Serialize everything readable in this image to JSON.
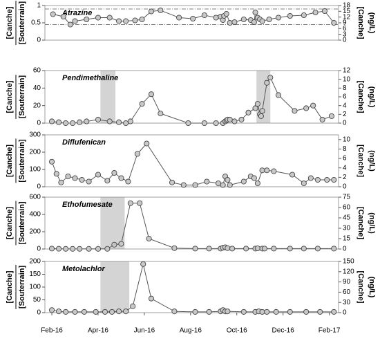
{
  "chart_data": [
    {
      "type": "line",
      "title": "Atrazine",
      "ylabel": {
        "numerator": "[Canche]",
        "denominator": "[Souterrain]"
      },
      "y2label": [
        "[Canche]",
        "(ng/L)"
      ],
      "xlim": [
        -0.3,
        12.4
      ],
      "x": [
        0.05,
        0.5,
        0.8,
        1.0,
        1.5,
        2.0,
        2.5,
        2.9,
        3.2,
        3.6,
        3.9,
        4.3,
        4.7,
        5.5,
        6.1,
        6.6,
        7.1,
        7.3,
        7.4,
        7.45,
        7.55,
        7.7,
        7.9,
        8.3,
        8.6,
        8.75,
        8.8,
        8.9,
        9.0,
        9.1,
        9.4,
        9.8,
        10.3,
        10.9,
        11.4,
        11.8,
        12.2
      ],
      "values": [
        0.75,
        0.68,
        0.45,
        0.55,
        0.6,
        0.65,
        0.65,
        0.55,
        0.55,
        0.57,
        0.6,
        0.83,
        0.86,
        0.65,
        0.62,
        0.72,
        0.65,
        0.68,
        0.58,
        0.7,
        0.76,
        0.5,
        0.52,
        0.6,
        0.58,
        0.52,
        0.8,
        0.65,
        0.6,
        0.55,
        0.6,
        0.65,
        0.7,
        0.72,
        0.8,
        0.84,
        0.5
      ],
      "ylim": [
        0,
        1
      ],
      "yticks": [
        0,
        0.5,
        1
      ],
      "y2lim": [
        0,
        18
      ],
      "y2ticks": [
        0,
        3,
        6,
        9,
        12,
        15,
        18
      ],
      "reference_lines": [
        0.9,
        0.45
      ],
      "color": "#c8c8c8"
    },
    {
      "type": "line",
      "title": "Pendimethaline",
      "ylabel": {
        "numerator": "[Canche]",
        "denominator": "[Souterrain]"
      },
      "y2label": [
        "[Canche]",
        "(ng/L)"
      ],
      "xlim": [
        -0.3,
        12.4
      ],
      "x": [
        0,
        0.3,
        0.6,
        0.9,
        1.2,
        1.5,
        2,
        2.5,
        2.9,
        3.2,
        3.4,
        3.9,
        4.3,
        4.7,
        5.9,
        6.6,
        7.1,
        7.4,
        7.5,
        7.55,
        7.6,
        7.7,
        7.9,
        8.2,
        8.5,
        8.8,
        8.9,
        9.0,
        9.05,
        9.1,
        9.3,
        9.45,
        9.8,
        10.5,
        11,
        11.3,
        11.7,
        12.1
      ],
      "values": [
        2,
        1,
        0,
        0,
        1,
        2,
        4,
        2,
        1,
        0,
        2,
        22,
        33,
        11,
        0,
        0,
        0,
        0,
        2,
        3,
        4,
        4,
        2,
        4,
        12,
        17,
        22,
        10,
        8,
        14,
        46,
        52,
        32,
        14,
        17,
        20,
        4,
        8
      ],
      "ylim": [
        0,
        60
      ],
      "yticks": [
        0,
        20,
        40,
        60
      ],
      "y2lim": [
        0,
        12
      ],
      "y2ticks": [
        0,
        2,
        4,
        6,
        8,
        10,
        12
      ],
      "shaded": [
        [
          2.1,
          2.75
        ],
        [
          8.85,
          9.45
        ]
      ],
      "color": "#c8c8c8"
    },
    {
      "type": "line",
      "title": "Diflufenican",
      "ylabel": {
        "numerator": "[Canche]",
        "denominator": "[Souterrain]"
      },
      "y2label": [
        "[Canche]",
        "(ng/L)"
      ],
      "xlim": [
        -0.3,
        12.4
      ],
      "x": [
        0,
        0.2,
        0.4,
        0.7,
        1.0,
        1.3,
        1.6,
        2,
        2.4,
        2.7,
        3.0,
        3.3,
        3.7,
        4.1,
        5.2,
        5.7,
        6.2,
        6.7,
        7.2,
        7.4,
        7.5,
        7.6,
        7.7,
        8.3,
        8.6,
        8.75,
        8.9,
        9.1,
        9.3,
        9.6,
        10.4,
        10.9,
        11.2,
        11.5,
        11.9,
        12.2
      ],
      "values": [
        145,
        75,
        25,
        60,
        50,
        40,
        30,
        70,
        35,
        80,
        50,
        30,
        190,
        250,
        25,
        10,
        10,
        30,
        20,
        10,
        60,
        40,
        10,
        30,
        60,
        50,
        20,
        95,
        95,
        90,
        70,
        20,
        50,
        40,
        40,
        40
      ],
      "ylim": [
        0,
        300
      ],
      "yticks": [
        0,
        100,
        200,
        300
      ],
      "y2lim": [
        0,
        11
      ],
      "y2ticks": [
        0,
        2,
        4,
        6,
        8,
        10
      ],
      "color": "#c8c8c8"
    },
    {
      "type": "line",
      "title": "Ethofumesate",
      "ylabel": {
        "numerator": "[Canche]",
        "denominator": "[Souterrain]"
      },
      "y2label": [
        "[Canche]",
        "(ng/L)"
      ],
      "xlim": [
        -0.3,
        12.4
      ],
      "x": [
        0,
        0.3,
        0.6,
        0.9,
        1.2,
        1.6,
        2,
        2.4,
        2.7,
        3.0,
        3.4,
        3.8,
        4.2,
        5.3,
        6.2,
        6.8,
        7.3,
        7.4,
        7.5,
        7.6,
        7.8,
        8.4,
        8.8,
        8.9,
        9.1,
        9.2,
        9.6,
        10.3,
        10.9,
        11.5,
        12.2
      ],
      "values": [
        5,
        3,
        2,
        2,
        2,
        2,
        2,
        2,
        50,
        60,
        530,
        530,
        120,
        10,
        5,
        5,
        5,
        15,
        20,
        10,
        5,
        5,
        5,
        8,
        5,
        5,
        5,
        5,
        5,
        5,
        5
      ],
      "ylim": [
        0,
        600
      ],
      "yticks": [
        0,
        200,
        400,
        600
      ],
      "y2lim": [
        0,
        75
      ],
      "y2ticks": [
        0,
        15,
        30,
        45,
        60,
        75
      ],
      "shaded": [
        [
          2.1,
          3.15
        ]
      ],
      "color": "#c8c8c8"
    },
    {
      "type": "line",
      "title": "Metolachlor",
      "ylabel": {
        "numerator": "[Canche]",
        "denominator": "[Souterrain]"
      },
      "y2label": [
        "[Canche]",
        "(ng/L)"
      ],
      "xlim": [
        -0.3,
        12.4
      ],
      "x": [
        0,
        0.3,
        0.6,
        1,
        1.4,
        1.9,
        2.3,
        2.6,
        2.9,
        3.2,
        3.5,
        3.95,
        4.3,
        5.3,
        6.2,
        6.8,
        7.3,
        7.4,
        7.5,
        7.6,
        8.3,
        8.8,
        8.95,
        9.1,
        9.3,
        9.7,
        10.3,
        11.0,
        11.6,
        12.2
      ],
      "values": [
        10,
        5,
        3,
        3,
        3,
        3,
        3,
        3,
        5,
        5,
        25,
        190,
        55,
        5,
        3,
        3,
        5,
        10,
        5,
        5,
        3,
        3,
        5,
        3,
        3,
        3,
        3,
        3,
        3,
        3
      ],
      "ylim": [
        0,
        200
      ],
      "yticks": [
        0,
        50,
        100,
        150,
        200
      ],
      "y2lim": [
        0,
        150
      ],
      "y2ticks": [
        0,
        30,
        60,
        90,
        120,
        150
      ],
      "shaded": [
        [
          2.1,
          3.35
        ]
      ],
      "color": "#c8c8c8",
      "xticks": [
        {
          "value": 0,
          "label": "Feb-16"
        },
        {
          "value": 2,
          "label": "Apr-16"
        },
        {
          "value": 4,
          "label": "Jun-16"
        },
        {
          "value": 6,
          "label": "Aug-16"
        },
        {
          "value": 8,
          "label": "Oct-16"
        },
        {
          "value": 10,
          "label": "Dec-16"
        },
        {
          "value": 12,
          "label": "Feb-17"
        }
      ]
    }
  ]
}
